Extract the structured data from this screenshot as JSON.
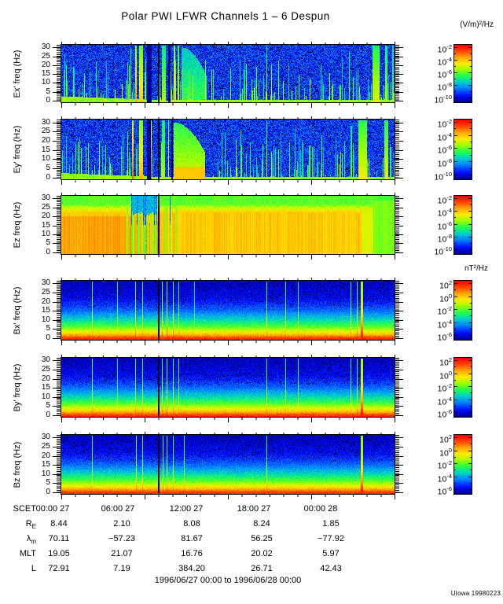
{
  "chart_data": {
    "type": "heatmap",
    "title": "Polar PWI LFWR Channels 1 – 6 Despun",
    "subtitle": "",
    "electric_unit": "(V/m)²/Hz",
    "magnetic_unit": "nT²/Hz",
    "x_axis": {
      "label_prefix": "SCET",
      "ticks": [
        "00:00 27",
        "06:00 27",
        "12:00 27",
        "18:00 27",
        "00:00 28"
      ],
      "major_tick_hours": 6,
      "minor_tick_hours": 1,
      "range_label": "1996/06/27 00:00 to 1996/06/28 00:00"
    },
    "y_axis": {
      "ticks": [
        0,
        5,
        10,
        15,
        20,
        25,
        30
      ],
      "unit": "Hz",
      "range": [
        0,
        31
      ]
    },
    "colorbar_electric": {
      "base": "10",
      "exponents": [
        "-2",
        "-4",
        "-6",
        "-8",
        "-10"
      ]
    },
    "colorbar_magnetic": {
      "base": "10",
      "exponents": [
        "2",
        "0",
        "-2",
        "-4",
        "-6"
      ]
    },
    "legend_position": "right",
    "grid": false,
    "data_gap_frac": 0.292,
    "panels": [
      {
        "id": "ex",
        "ylabel": "Ex' freq (Hz)",
        "kind": "E",
        "colorbar": "electric",
        "seed": 11,
        "features": {
          "events": [
            {
              "x": 0.208,
              "w": 0.003,
              "v": 0.55,
              "h": 0.95
            },
            {
              "x": 0.224,
              "w": 0.003,
              "v": 0.72,
              "h": 1
            },
            {
              "x": 0.24,
              "w": 0.012,
              "v": 0.68,
              "h": 1
            },
            {
              "x": 0.307,
              "w": 0.012,
              "v": 0.55,
              "h": 1
            },
            {
              "x": 0.34,
              "w": 0.004,
              "v": 0.7,
              "h": 1
            },
            {
              "x": 0.352,
              "w": 0.005,
              "v": 0.6,
              "h": 1
            },
            {
              "x": 0.617,
              "w": 0.002,
              "v": 0.55,
              "h": 1
            },
            {
              "x": 0.865,
              "w": 0.003,
              "v": 0.5,
              "h": 0.9
            },
            {
              "x": 0.945,
              "w": 0.02,
              "v": 0.6,
              "h": 1
            },
            {
              "x": 0.975,
              "w": 0.006,
              "v": 0.55,
              "h": 1
            },
            {
              "x": 0.995,
              "w": 0.004,
              "v": 0.5,
              "h": 1
            }
          ],
          "dark_cols": [
            {
              "x": 0.264,
              "w": 0.014
            },
            {
              "x": 0.325,
              "w": 0.008
            }
          ],
          "blob": {
            "x0": 0.36,
            "x1": 0.435,
            "v": 0.46
          },
          "streak_count": 150
        }
      },
      {
        "id": "ey",
        "ylabel": "Ey' freq (Hz)",
        "kind": "E",
        "colorbar": "electric",
        "seed": 22,
        "features": {
          "events": [
            {
              "x": 0.215,
              "w": 0.004,
              "v": 0.78,
              "h": 1
            },
            {
              "x": 0.24,
              "w": 0.012,
              "v": 0.7,
              "h": 1
            },
            {
              "x": 0.27,
              "w": 0.004,
              "v": 0.8,
              "h": 1
            },
            {
              "x": 0.307,
              "w": 0.01,
              "v": 0.55,
              "h": 1
            },
            {
              "x": 0.322,
              "w": 0.004,
              "v": 0.65,
              "h": 1
            },
            {
              "x": 0.617,
              "w": 0.002,
              "v": 0.55,
              "h": 1
            },
            {
              "x": 0.87,
              "w": 0.004,
              "v": 0.5,
              "h": 0.9
            },
            {
              "x": 0.905,
              "w": 0.025,
              "v": 0.62,
              "h": 1
            },
            {
              "x": 0.975,
              "w": 0.01,
              "v": 0.6,
              "h": 1
            }
          ],
          "dark_cols": [
            {
              "x": 0.264,
              "w": 0.012
            },
            {
              "x": 0.332,
              "w": 0.005
            }
          ],
          "blob": {
            "x0": 0.335,
            "x1": 0.43,
            "v": 0.6
          },
          "blob_hot_bottom": true,
          "streak_count": 150
        }
      },
      {
        "id": "ez",
        "ylabel": "Ez freq (Hz)",
        "kind": "Ez",
        "colorbar": "electric",
        "seed": 33,
        "features": {
          "events": [],
          "dark_cols": [],
          "disturbed_zone": [
            0.195,
            0.345
          ],
          "right_green_zone": [
            0.935,
            1.0
          ]
        }
      },
      {
        "id": "bx",
        "ylabel": "Bx' freq (Hz)",
        "kind": "B",
        "colorbar": "magnetic",
        "seed": 44,
        "features": {
          "streaks": [
            {
              "x": 0.092,
              "v": 0.44
            },
            {
              "x": 0.168,
              "v": 0.38
            },
            {
              "x": 0.222,
              "v": 0.48
            },
            {
              "x": 0.243,
              "v": 0.44
            },
            {
              "x": 0.302,
              "v": 0.48
            },
            {
              "x": 0.318,
              "v": 0.52
            },
            {
              "x": 0.335,
              "v": 0.48
            },
            {
              "x": 0.352,
              "v": 0.44
            },
            {
              "x": 0.4,
              "v": 0.34
            },
            {
              "x": 0.617,
              "v": 0.44
            },
            {
              "x": 0.672,
              "v": 0.44
            },
            {
              "x": 0.71,
              "v": 0.4
            },
            {
              "x": 0.868,
              "v": 0.44
            },
            {
              "x": 0.887,
              "v": 0.48
            },
            {
              "x": 0.902,
              "w": 0.007,
              "v": 0.56
            }
          ]
        }
      },
      {
        "id": "by",
        "ylabel": "By' freq (Hz)",
        "kind": "B",
        "colorbar": "magnetic",
        "seed": 55,
        "features": {
          "streaks": [
            {
              "x": 0.092,
              "v": 0.44
            },
            {
              "x": 0.168,
              "v": 0.36
            },
            {
              "x": 0.222,
              "v": 0.46
            },
            {
              "x": 0.243,
              "v": 0.44
            },
            {
              "x": 0.302,
              "v": 0.46
            },
            {
              "x": 0.318,
              "v": 0.5
            },
            {
              "x": 0.335,
              "v": 0.46
            },
            {
              "x": 0.352,
              "v": 0.44
            },
            {
              "x": 0.617,
              "v": 0.44
            },
            {
              "x": 0.672,
              "v": 0.42
            },
            {
              "x": 0.71,
              "v": 0.4
            },
            {
              "x": 0.868,
              "v": 0.42
            },
            {
              "x": 0.887,
              "v": 0.46
            },
            {
              "x": 0.902,
              "w": 0.007,
              "v": 0.56
            }
          ]
        }
      },
      {
        "id": "bz",
        "ylabel": "Bz freq (Hz)",
        "kind": "B",
        "colorbar": "magnetic",
        "seed": 66,
        "features": {
          "streaks": [
            {
              "x": 0.092,
              "v": 0.42
            },
            {
              "x": 0.225,
              "v": 0.46
            },
            {
              "x": 0.243,
              "v": 0.44
            },
            {
              "x": 0.305,
              "v": 0.46
            },
            {
              "x": 0.318,
              "v": 0.48
            },
            {
              "x": 0.335,
              "v": 0.44
            },
            {
              "x": 0.37,
              "v": 0.4
            },
            {
              "x": 0.617,
              "v": 0.44
            },
            {
              "x": 0.902,
              "w": 0.005,
              "v": 0.54
            }
          ]
        }
      }
    ]
  },
  "ephemeris": {
    "rows": [
      {
        "label": "SCET",
        "sub": "",
        "values": [
          "00:00 27",
          "06:00 27",
          "12:00 27",
          "18:00 27",
          "00:00 28"
        ]
      },
      {
        "label": "R",
        "sub": "E",
        "values": [
          "8.44",
          "2.10",
          "8.08",
          "8.24",
          "1.85"
        ]
      },
      {
        "label": "λ",
        "sub": "m",
        "values": [
          "70.11",
          "−57.23",
          "81.67",
          "56.25",
          "−77.92"
        ]
      },
      {
        "label": "MLT",
        "sub": "",
        "values": [
          "19.05",
          "21.07",
          "16.76",
          "20.02",
          "5.97"
        ]
      },
      {
        "label": "L",
        "sub": "",
        "values": [
          "72.91",
          "7.19",
          "384.20",
          "26.71",
          "42.43"
        ]
      }
    ]
  },
  "footer": {
    "credit": "UIowa 19980223"
  }
}
